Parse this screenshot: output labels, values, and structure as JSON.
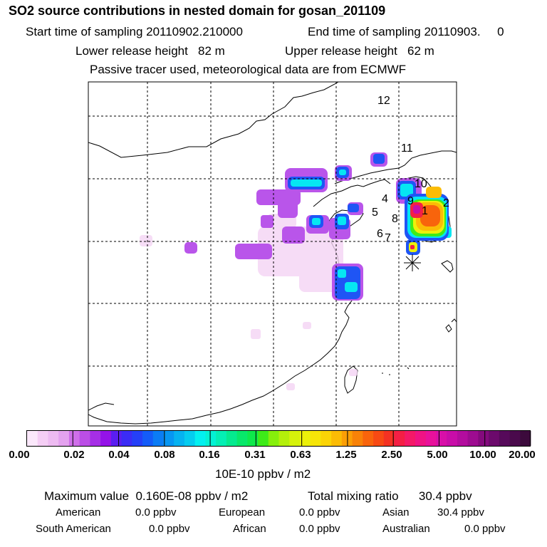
{
  "header": {
    "title": "SO2 source contributions in nested domain for gosan_201109",
    "start_sampling": "Start time of sampling 20110902.210000",
    "end_sampling": "End time of sampling 20110903.     0",
    "lower_release": "Lower release height   82 m",
    "upper_release": "Upper release height   62 m",
    "tracer_note": "Passive tracer used, meteorological data are from ECMWF"
  },
  "map": {
    "source_labels": [
      "12",
      "11",
      "10",
      "4",
      "9",
      "1",
      "2",
      "5",
      "8",
      "6",
      "7"
    ],
    "receptor_marker": "asterisk"
  },
  "colorbar": {
    "tick_labels": [
      "0.00",
      "0.02",
      "0.04",
      "0.08",
      "0.16",
      "0.31",
      "0.63",
      "1.25",
      "2.50",
      "5.00",
      "10.00",
      "20.00"
    ],
    "units": "10E-10 ppbv / m2",
    "colors": [
      "#fbe8fb",
      "#f5cef5",
      "#eebbf2",
      "#e4a2ef",
      "#cf6fe9",
      "#bb4ee6",
      "#a62fe6",
      "#9413e8",
      "#5a1ef0",
      "#3b2cf5",
      "#2540f7",
      "#145cf8",
      "#0b7cf5",
      "#0796f2",
      "#06b2f0",
      "#05ccef",
      "#03f0f0",
      "#04f2d4",
      "#04efb4",
      "#05ea8f",
      "#08e86a",
      "#0ee94b",
      "#3eeb19",
      "#86ef0c",
      "#b4f00b",
      "#d6f20b",
      "#ecf00a",
      "#f6e508",
      "#fbd406",
      "#fbbc05",
      "#fb9f06",
      "#f88208",
      "#f8640c",
      "#f74a14",
      "#f43223",
      "#f41f45",
      "#f41968",
      "#ef1384",
      "#e8119b",
      "#d80fa8",
      "#c80da8",
      "#b30d9e",
      "#9d0c90",
      "#840a7d",
      "#6c0a6c",
      "#560a5a",
      "#4a0a4c",
      "#3c0a3c"
    ]
  },
  "summary": {
    "max_value": "Maximum value  0.160E-08 ppbv / m2",
    "total_mixing": "Total mixing ratio      30.4 ppbv"
  },
  "regions": [
    {
      "name": "American",
      "value": "0.0 ppbv"
    },
    {
      "name": "European",
      "value": "0.0 ppbv"
    },
    {
      "name": "Asian",
      "value": "30.4 ppbv"
    },
    {
      "name": "South American",
      "value": "0.0 ppbv"
    },
    {
      "name": "African",
      "value": "0.0 ppbv"
    },
    {
      "name": "Australian",
      "value": "0.0 ppbv"
    }
  ]
}
